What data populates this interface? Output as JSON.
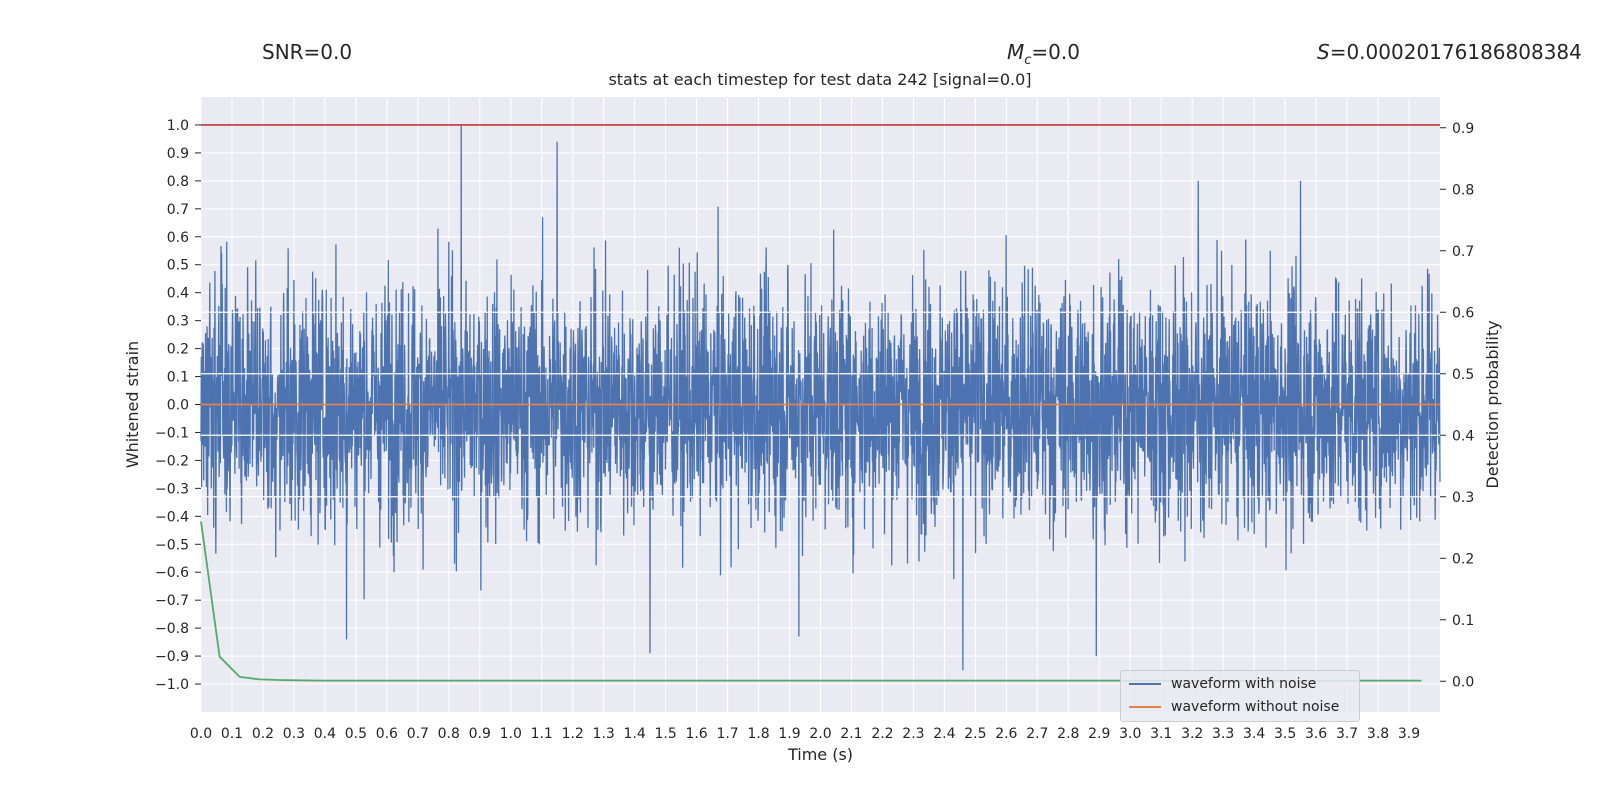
{
  "header": {
    "snr": "SNR=0.0",
    "mc_symbol": "M",
    "mc_sub": "c",
    "mc_value": "=0.0",
    "s_symbol": "S",
    "s_value": "=0.00020176186808384"
  },
  "chart_data": {
    "type": "line",
    "title": "stats at each timestep for test data 242 [signal=0.0]",
    "xlabel": "Time (s)",
    "ylabel": "Whitened strain",
    "y2label": "Detection probability",
    "xlim": [
      0.0,
      4.0
    ],
    "ylim": [
      -1.1,
      1.1
    ],
    "y2lim": [
      -0.05,
      0.95
    ],
    "x_ticks": [
      "0.0",
      "0.1",
      "0.2",
      "0.3",
      "0.4",
      "0.5",
      "0.6",
      "0.7",
      "0.8",
      "0.9",
      "1.0",
      "1.1",
      "1.2",
      "1.3",
      "1.4",
      "1.5",
      "1.6",
      "1.7",
      "1.8",
      "1.9",
      "2.0",
      "2.1",
      "2.2",
      "2.3",
      "2.4",
      "2.5",
      "2.6",
      "2.7",
      "2.8",
      "2.9",
      "3.0",
      "3.1",
      "3.2",
      "3.3",
      "3.4",
      "3.5",
      "3.6",
      "3.7",
      "3.8",
      "3.9"
    ],
    "y_ticks": [
      "1.0",
      "0.9",
      "0.8",
      "0.7",
      "0.6",
      "0.5",
      "0.4",
      "0.3",
      "0.2",
      "0.1",
      "0.0",
      "−0.1",
      "−0.2",
      "−0.3",
      "−0.4",
      "−0.5",
      "−0.6",
      "−0.7",
      "−0.8",
      "−0.9",
      "−1.0"
    ],
    "y2_ticks": [
      "0.9",
      "0.8",
      "0.7",
      "0.6",
      "0.5",
      "0.4",
      "0.3",
      "0.2",
      "0.1",
      "0.0"
    ],
    "grid": true,
    "legend_position": "lower-right",
    "series": [
      {
        "name": "waveform with noise",
        "color": "#4c72b0",
        "axis": "left",
        "style": "dense noise trace",
        "x_range": [
          0.0,
          4.0
        ],
        "samples": 4096,
        "approx_peaks": [
          {
            "x": 0.84,
            "y": 1.0
          },
          {
            "x": 1.15,
            "y": 0.94
          },
          {
            "x": 3.22,
            "y": 0.8
          },
          {
            "x": 3.55,
            "y": 0.8
          },
          {
            "x": 2.46,
            "y": -0.95
          },
          {
            "x": 1.45,
            "y": -0.89
          },
          {
            "x": 2.89,
            "y": -0.9
          },
          {
            "x": 0.47,
            "y": -0.84
          },
          {
            "x": 1.93,
            "y": -0.83
          }
        ]
      },
      {
        "name": "waveform without noise",
        "color": "#dd8452",
        "axis": "left",
        "x": [
          0.0,
          4.0
        ],
        "values": [
          0.0,
          0.0
        ]
      },
      {
        "color": "#55a868",
        "axis": "right",
        "x": [
          0.0,
          0.06,
          0.125,
          0.19,
          0.25,
          0.3,
          0.4,
          0.6,
          1.0,
          2.0,
          3.0,
          3.94
        ],
        "values": [
          0.26,
          0.04,
          0.007,
          0.003,
          0.002,
          0.0015,
          0.001,
          0.001,
          0.001,
          0.001,
          0.001,
          0.001
        ]
      },
      {
        "color": "#c44e52",
        "axis": "left",
        "x": [
          0.0,
          4.0
        ],
        "values": [
          1.0,
          1.0
        ]
      }
    ],
    "right_axis_gridlines": [
      0.6,
      0.5,
      0.4,
      0.3
    ]
  }
}
